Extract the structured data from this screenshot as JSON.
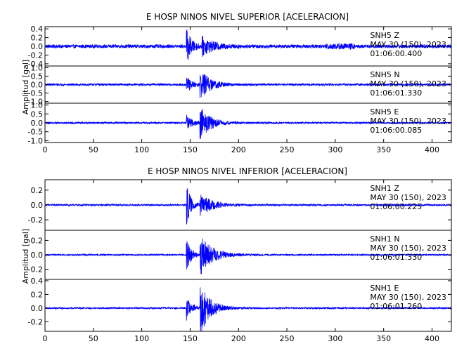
{
  "chart_data": [
    {
      "type": "line",
      "title": "E HOSP NINOS NIVEL SUPERIOR [ACELERACION]",
      "ylabel": "Amplitud [gal]",
      "xlabel": "",
      "xlim": [
        0,
        420
      ],
      "x_ticks": [
        0,
        50,
        100,
        150,
        200,
        250,
        300,
        350,
        400
      ],
      "x_tick_labels": [
        "0",
        "50",
        "100",
        "150",
        "200",
        "250",
        "300",
        "350",
        "400"
      ],
      "grid": false,
      "color": "#0000ff",
      "series": [
        {
          "name": "SNH5 Z",
          "label_lines": [
            "SNH5   Z",
            "MAY 30 (150), 2023",
            "01:06:00.400"
          ],
          "ylim": [
            -0.45,
            0.45
          ],
          "y_ticks": [
            -0.4,
            -0.2,
            0.0,
            0.2,
            0.4
          ],
          "y_tick_labels": [
            "-0.4",
            "-0.2",
            "0.0",
            "0.2",
            "0.4"
          ],
          "noise": 0.04,
          "peak": 0.42,
          "bursts": [
            {
              "t": 146,
              "amp": 0.42,
              "decay": 5
            },
            {
              "t": 162,
              "amp": 0.2,
              "decay": 12
            }
          ]
        },
        {
          "name": "SNH5 N",
          "label_lines": [
            "SNH5   N",
            "MAY 30 (150), 2023",
            "01:06:01.330"
          ],
          "ylim": [
            -1.1,
            1.1
          ],
          "y_ticks": [
            -1.0,
            -0.5,
            0.0,
            0.5,
            1.0
          ],
          "y_tick_labels": [
            "-1.0",
            "-0.5",
            "0.0",
            "0.5",
            "1.0"
          ],
          "noise": 0.06,
          "peak": 1.0,
          "bursts": [
            {
              "t": 146,
              "amp": 0.5,
              "decay": 6
            },
            {
              "t": 160,
              "amp": 0.95,
              "decay": 10
            }
          ]
        },
        {
          "name": "SNH5 E",
          "label_lines": [
            "SNH5   E",
            "MAY 30 (150), 2023",
            "01:06:00.085"
          ],
          "ylim": [
            -1.1,
            1.1
          ],
          "y_ticks": [
            -1.0,
            -0.5,
            0.0,
            0.5,
            1.0
          ],
          "y_tick_labels": [
            "-1.0",
            "-0.5",
            "0.0",
            "0.5",
            "1.0"
          ],
          "noise": 0.05,
          "peak": 1.0,
          "bursts": [
            {
              "t": 146,
              "amp": 0.45,
              "decay": 6
            },
            {
              "t": 160,
              "amp": 1.0,
              "decay": 10
            }
          ]
        }
      ]
    },
    {
      "type": "line",
      "title": "E HOSP NINOS NIVEL INFERIOR [ACELERACION]",
      "ylabel": "Amplitud [gal]",
      "xlabel": "",
      "xlim": [
        0,
        420
      ],
      "x_ticks": [
        0,
        50,
        100,
        150,
        200,
        250,
        300,
        350,
        400
      ],
      "x_tick_labels": [
        "0",
        "50",
        "100",
        "150",
        "200",
        "250",
        "300",
        "350",
        "400"
      ],
      "grid": false,
      "color": "#0000ff",
      "series": [
        {
          "name": "SNH1 Z",
          "label_lines": [
            "SNH1   Z",
            "MAY 30 (150), 2023",
            "01:06:00.225"
          ],
          "ylim": [
            -0.34,
            0.34
          ],
          "y_ticks": [
            -0.2,
            0.0,
            0.2
          ],
          "y_tick_labels": [
            "-0.2",
            "0.0",
            "0.2"
          ],
          "noise": 0.012,
          "peak": 0.33,
          "bursts": [
            {
              "t": 146,
              "amp": 0.33,
              "decay": 4
            },
            {
              "t": 160,
              "amp": 0.15,
              "decay": 12
            }
          ]
        },
        {
          "name": "SNH1 N",
          "label_lines": [
            "SNH1   N",
            "MAY 30 (150), 2023",
            "01:06:01.330"
          ],
          "ylim": [
            -0.34,
            0.34
          ],
          "y_ticks": [
            -0.2,
            0.0,
            0.2
          ],
          "y_tick_labels": [
            "-0.2",
            "0.0",
            "0.2"
          ],
          "noise": 0.01,
          "peak": 0.3,
          "bursts": [
            {
              "t": 146,
              "amp": 0.24,
              "decay": 5
            },
            {
              "t": 160,
              "amp": 0.3,
              "decay": 12
            }
          ]
        },
        {
          "name": "SNH1 E",
          "label_lines": [
            "SNH1   E",
            "MAY 30 (150), 2023",
            "01:06:01.260"
          ],
          "ylim": [
            -0.34,
            0.42
          ],
          "y_ticks": [
            -0.2,
            0.0,
            0.2,
            0.4
          ],
          "y_tick_labels": [
            "-0.2",
            "0.0",
            "0.2",
            "0.4"
          ],
          "noise": 0.012,
          "peak": 0.4,
          "bursts": [
            {
              "t": 146,
              "amp": 0.2,
              "decay": 5
            },
            {
              "t": 160,
              "amp": 0.4,
              "decay": 10
            }
          ]
        }
      ]
    }
  ]
}
